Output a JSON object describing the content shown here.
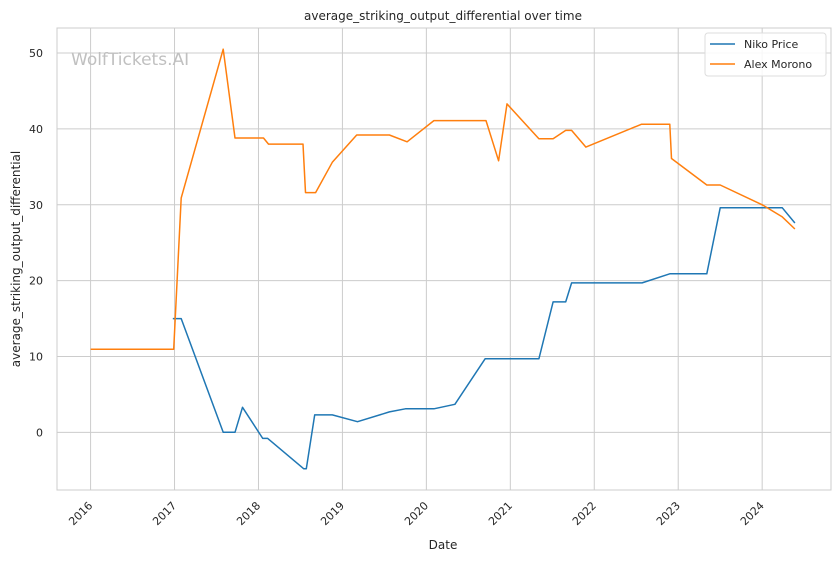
{
  "chart_data": {
    "type": "line",
    "title": "average_striking_output_differential over time",
    "xlabel": "Date",
    "ylabel": "average_striking_output_differential",
    "watermark": "WolfTickets.AI",
    "xlim": [
      2015.6,
      2024.82
    ],
    "ylim": [
      -7.6,
      53.3
    ],
    "x_ticks": [
      2016,
      2017,
      2018,
      2019,
      2020,
      2021,
      2022,
      2023,
      2024
    ],
    "x_tick_labels": [
      "2016",
      "2017",
      "2018",
      "2019",
      "2020",
      "2021",
      "2022",
      "2023",
      "2024"
    ],
    "y_ticks": [
      0,
      10,
      20,
      30,
      40,
      50
    ],
    "y_tick_labels": [
      "0",
      "10",
      "20",
      "30",
      "40",
      "50"
    ],
    "grid": true,
    "legend_position": "top-right",
    "series": [
      {
        "name": "Niko Price",
        "color": "#1f77b4",
        "x": [
          2016.98,
          2017.08,
          2017.58,
          2017.72,
          2017.81,
          2018.05,
          2018.11,
          2018.54,
          2018.57,
          2018.67,
          2018.88,
          2019.18,
          2019.56,
          2019.75,
          2020.09,
          2020.34,
          2020.7,
          2021.34,
          2021.51,
          2021.66,
          2021.73,
          2022.57,
          2022.9,
          2023.34,
          2023.5,
          2024.24,
          2024.39
        ],
        "y": [
          15.0,
          15.0,
          0.0,
          0.0,
          3.3,
          -0.8,
          -0.8,
          -4.8,
          -4.8,
          2.3,
          2.3,
          1.4,
          2.7,
          3.1,
          3.1,
          3.7,
          9.7,
          9.7,
          17.2,
          17.2,
          19.7,
          19.7,
          20.9,
          20.9,
          29.6,
          29.6,
          27.6
        ]
      },
      {
        "name": "Alex Morono",
        "color": "#ff7f0e",
        "x": [
          2016.0,
          2016.99,
          2017.08,
          2017.58,
          2017.72,
          2018.06,
          2018.12,
          2018.53,
          2018.56,
          2018.68,
          2018.88,
          2019.17,
          2019.56,
          2019.77,
          2020.09,
          2020.71,
          2020.86,
          2020.96,
          2021.34,
          2021.51,
          2021.66,
          2021.73,
          2021.9,
          2022.56,
          2022.9,
          2022.92,
          2023.34,
          2023.5,
          2024.0,
          2024.24,
          2024.39
        ],
        "y": [
          10.95,
          10.95,
          30.9,
          50.5,
          38.8,
          38.8,
          38.0,
          38.0,
          31.6,
          31.6,
          35.6,
          39.2,
          39.2,
          38.3,
          41.1,
          41.1,
          35.8,
          43.3,
          38.7,
          38.7,
          39.8,
          39.8,
          37.6,
          40.6,
          40.6,
          36.1,
          32.6,
          32.6,
          30.0,
          28.4,
          26.8
        ]
      }
    ]
  }
}
